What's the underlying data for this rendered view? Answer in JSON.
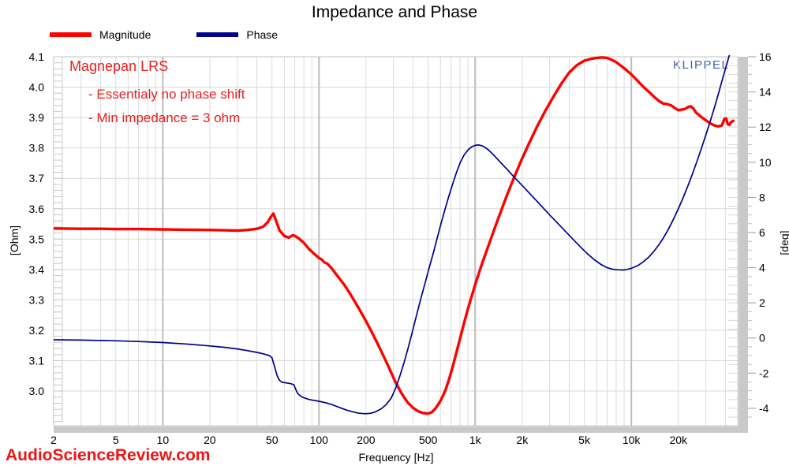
{
  "title": "Impedance and Phase",
  "legend": {
    "magnitude_label": "Magnitude",
    "phase_label": "Phase"
  },
  "annotations": {
    "color": "#e82020",
    "line1": "Magnepan LRS",
    "line2": "- Essentialy no phase shift",
    "line3": "- Min impedance = 3 ohm"
  },
  "klippel_watermark": "KLIPPEL",
  "klippel_color": "#4060a8",
  "site_watermark": "AudioScienceReview.com",
  "site_watermark_color": "#f01414",
  "chart_data": {
    "type": "line",
    "title": "Impedance and Phase",
    "x_axis": {
      "label": "Frequency [Hz]",
      "scale": "log",
      "min": 2,
      "max": 48000,
      "ticks": [
        {
          "f": 2,
          "label": "2"
        },
        {
          "f": 5,
          "label": "5"
        },
        {
          "f": 10,
          "label": "10"
        },
        {
          "f": 20,
          "label": "20"
        },
        {
          "f": 50,
          "label": "50"
        },
        {
          "f": 100,
          "label": "100"
        },
        {
          "f": 200,
          "label": "200"
        },
        {
          "f": 500,
          "label": "500"
        },
        {
          "f": 1000,
          "label": "1k"
        },
        {
          "f": 2000,
          "label": "2k"
        },
        {
          "f": 5000,
          "label": "5k"
        },
        {
          "f": 10000,
          "label": "10k"
        },
        {
          "f": 20000,
          "label": "20k"
        }
      ]
    },
    "y_left": {
      "label": "[Ohm]",
      "min": 2.886,
      "max": 4.1,
      "ticks": [
        4.1,
        4.0,
        3.9,
        3.8,
        3.7,
        3.6,
        3.5,
        3.4,
        3.3,
        3.2,
        3.1,
        3.0
      ],
      "minor_step": 0.02
    },
    "y_right": {
      "label": "[deg]",
      "min": -4.99,
      "max": 16,
      "ticks": [
        16,
        14,
        12,
        10,
        8,
        6,
        4,
        2,
        0,
        -2,
        -4
      ],
      "minor_step": 0.5
    },
    "grid": {
      "h_color": "#d9d9d9",
      "minor_v_color": "#dcdcdc",
      "decade_v_color": "#bdbdbd",
      "border_color": "#c0c0c0",
      "ruler_color": "#c9c9c9",
      "legend_position": "top-left"
    },
    "series": [
      {
        "name": "Magnitude",
        "axis": "left",
        "color": "#ff0000",
        "width": 3.4,
        "points": [
          [
            2,
            3.535
          ],
          [
            3,
            3.534
          ],
          [
            4,
            3.534
          ],
          [
            5,
            3.533
          ],
          [
            7,
            3.533
          ],
          [
            10,
            3.532
          ],
          [
            14,
            3.531
          ],
          [
            20,
            3.53
          ],
          [
            25,
            3.529
          ],
          [
            30,
            3.528
          ],
          [
            35,
            3.53
          ],
          [
            40,
            3.534
          ],
          [
            44,
            3.541
          ],
          [
            47,
            3.556
          ],
          [
            49,
            3.572
          ],
          [
            51,
            3.584
          ],
          [
            53,
            3.562
          ],
          [
            56,
            3.528
          ],
          [
            60,
            3.51
          ],
          [
            64,
            3.505
          ],
          [
            68,
            3.513
          ],
          [
            71,
            3.509
          ],
          [
            75,
            3.5
          ],
          [
            80,
            3.488
          ],
          [
            86,
            3.468
          ],
          [
            93,
            3.452
          ],
          [
            100,
            3.438
          ],
          [
            104,
            3.433
          ],
          [
            108,
            3.424
          ],
          [
            113,
            3.419
          ],
          [
            120,
            3.405
          ],
          [
            130,
            3.382
          ],
          [
            145,
            3.35
          ],
          [
            160,
            3.316
          ],
          [
            180,
            3.272
          ],
          [
            200,
            3.23
          ],
          [
            225,
            3.18
          ],
          [
            250,
            3.132
          ],
          [
            280,
            3.078
          ],
          [
            310,
            3.028
          ],
          [
            340,
            2.99
          ],
          [
            370,
            2.962
          ],
          [
            400,
            2.945
          ],
          [
            430,
            2.934
          ],
          [
            460,
            2.928
          ],
          [
            500,
            2.926
          ],
          [
            530,
            2.931
          ],
          [
            560,
            2.944
          ],
          [
            600,
            2.968
          ],
          [
            640,
            2.998
          ],
          [
            680,
            3.038
          ],
          [
            720,
            3.082
          ],
          [
            760,
            3.128
          ],
          [
            800,
            3.172
          ],
          [
            850,
            3.225
          ],
          [
            900,
            3.272
          ],
          [
            950,
            3.312
          ],
          [
            1000,
            3.35
          ],
          [
            1100,
            3.415
          ],
          [
            1200,
            3.47
          ],
          [
            1300,
            3.52
          ],
          [
            1400,
            3.565
          ],
          [
            1600,
            3.645
          ],
          [
            1800,
            3.71
          ],
          [
            2000,
            3.765
          ],
          [
            2200,
            3.812
          ],
          [
            2500,
            3.872
          ],
          [
            2800,
            3.92
          ],
          [
            3200,
            3.972
          ],
          [
            3600,
            4.015
          ],
          [
            4000,
            4.048
          ],
          [
            4500,
            4.073
          ],
          [
            5000,
            4.087
          ],
          [
            5500,
            4.093
          ],
          [
            6000,
            4.096
          ],
          [
            6500,
            4.098
          ],
          [
            7000,
            4.096
          ],
          [
            7500,
            4.09
          ],
          [
            8000,
            4.082
          ],
          [
            8500,
            4.072
          ],
          [
            9000,
            4.062
          ],
          [
            9500,
            4.052
          ],
          [
            10000,
            4.042
          ],
          [
            11000,
            4.02
          ],
          [
            12000,
            4.0
          ],
          [
            13000,
            3.984
          ],
          [
            14000,
            3.968
          ],
          [
            15000,
            3.955
          ],
          [
            16000,
            3.946
          ],
          [
            17000,
            3.944
          ],
          [
            18000,
            3.94
          ],
          [
            19000,
            3.931
          ],
          [
            20000,
            3.924
          ],
          [
            21000,
            3.926
          ],
          [
            22000,
            3.928
          ],
          [
            23000,
            3.934
          ],
          [
            24000,
            3.937
          ],
          [
            25000,
            3.929
          ],
          [
            26000,
            3.916
          ],
          [
            27000,
            3.909
          ],
          [
            28000,
            3.902
          ],
          [
            30000,
            3.891
          ],
          [
            32000,
            3.881
          ],
          [
            34000,
            3.874
          ],
          [
            36000,
            3.871
          ],
          [
            38000,
            3.874
          ],
          [
            39500,
            3.896
          ],
          [
            40500,
            3.897
          ],
          [
            41500,
            3.878
          ],
          [
            42500,
            3.876
          ],
          [
            43500,
            3.885
          ],
          [
            45000,
            3.889
          ]
        ]
      },
      {
        "name": "Phase",
        "axis": "right",
        "color": "#00008b",
        "width": 1.7,
        "points": [
          [
            2,
            -0.1
          ],
          [
            3,
            -0.12
          ],
          [
            5,
            -0.16
          ],
          [
            7,
            -0.2
          ],
          [
            10,
            -0.26
          ],
          [
            14,
            -0.34
          ],
          [
            20,
            -0.45
          ],
          [
            25,
            -0.53
          ],
          [
            30,
            -0.62
          ],
          [
            35,
            -0.72
          ],
          [
            40,
            -0.82
          ],
          [
            44,
            -0.9
          ],
          [
            48,
            -1.0
          ],
          [
            50,
            -1.12
          ],
          [
            52,
            -1.65
          ],
          [
            54,
            -2.15
          ],
          [
            56,
            -2.42
          ],
          [
            58,
            -2.52
          ],
          [
            62,
            -2.56
          ],
          [
            66,
            -2.6
          ],
          [
            69,
            -2.66
          ],
          [
            71,
            -2.92
          ],
          [
            73,
            -3.15
          ],
          [
            76,
            -3.3
          ],
          [
            80,
            -3.4
          ],
          [
            85,
            -3.48
          ],
          [
            90,
            -3.53
          ],
          [
            100,
            -3.6
          ],
          [
            110,
            -3.68
          ],
          [
            120,
            -3.78
          ],
          [
            135,
            -3.95
          ],
          [
            150,
            -4.1
          ],
          [
            165,
            -4.2
          ],
          [
            180,
            -4.28
          ],
          [
            200,
            -4.31
          ],
          [
            215,
            -4.28
          ],
          [
            230,
            -4.2
          ],
          [
            250,
            -4.03
          ],
          [
            270,
            -3.78
          ],
          [
            290,
            -3.42
          ],
          [
            310,
            -2.85
          ],
          [
            330,
            -2.15
          ],
          [
            350,
            -1.42
          ],
          [
            370,
            -0.65
          ],
          [
            390,
            0.12
          ],
          [
            410,
            0.88
          ],
          [
            430,
            1.6
          ],
          [
            450,
            2.28
          ],
          [
            480,
            3.18
          ],
          [
            510,
            4.05
          ],
          [
            540,
            4.85
          ],
          [
            570,
            5.65
          ],
          [
            600,
            6.4
          ],
          [
            640,
            7.3
          ],
          [
            680,
            8.1
          ],
          [
            720,
            8.8
          ],
          [
            760,
            9.42
          ],
          [
            800,
            9.95
          ],
          [
            850,
            10.42
          ],
          [
            900,
            10.7
          ],
          [
            950,
            10.88
          ],
          [
            1000,
            10.96
          ],
          [
            1060,
            10.98
          ],
          [
            1120,
            10.92
          ],
          [
            1200,
            10.75
          ],
          [
            1300,
            10.45
          ],
          [
            1450,
            10.0
          ],
          [
            1600,
            9.6
          ],
          [
            1800,
            9.1
          ],
          [
            2000,
            8.68
          ],
          [
            2300,
            8.1
          ],
          [
            2600,
            7.6
          ],
          [
            3000,
            7.0
          ],
          [
            3400,
            6.5
          ],
          [
            3800,
            6.05
          ],
          [
            4200,
            5.65
          ],
          [
            4700,
            5.2
          ],
          [
            5200,
            4.82
          ],
          [
            5800,
            4.45
          ],
          [
            6400,
            4.18
          ],
          [
            7000,
            4.0
          ],
          [
            7600,
            3.91
          ],
          [
            8200,
            3.88
          ],
          [
            8800,
            3.87
          ],
          [
            9400,
            3.9
          ],
          [
            10000,
            3.96
          ],
          [
            11000,
            4.12
          ],
          [
            12000,
            4.35
          ],
          [
            13000,
            4.62
          ],
          [
            14000,
            4.95
          ],
          [
            15000,
            5.3
          ],
          [
            16000,
            5.68
          ],
          [
            17000,
            6.08
          ],
          [
            18000,
            6.5
          ],
          [
            19000,
            6.92
          ],
          [
            20000,
            7.35
          ],
          [
            21500,
            8.0
          ],
          [
            23000,
            8.65
          ],
          [
            24500,
            9.28
          ],
          [
            26000,
            9.92
          ],
          [
            28000,
            10.75
          ],
          [
            30000,
            11.55
          ],
          [
            32000,
            12.32
          ],
          [
            34000,
            13.1
          ],
          [
            36000,
            13.85
          ],
          [
            38000,
            14.6
          ],
          [
            40000,
            15.3
          ],
          [
            42000,
            15.95
          ],
          [
            43500,
            16.4
          ]
        ]
      }
    ]
  }
}
